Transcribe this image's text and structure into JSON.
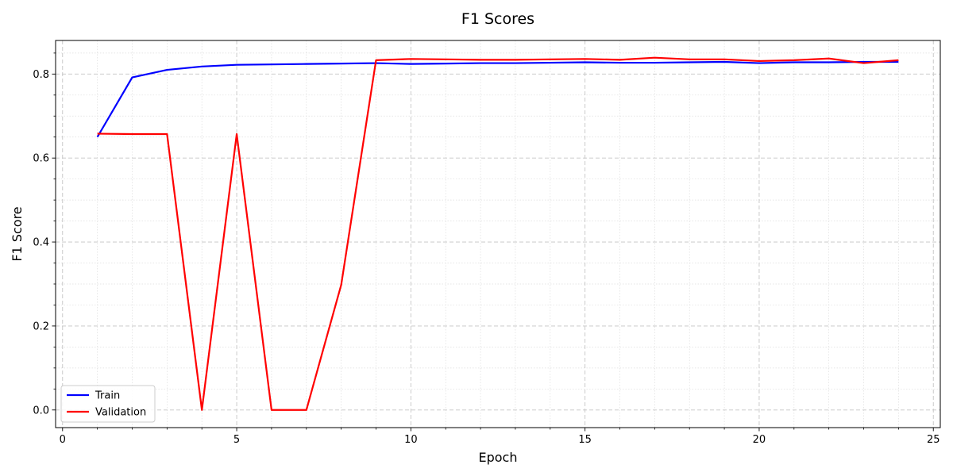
{
  "chart_data": {
    "type": "line",
    "title": "F1 Scores",
    "xlabel": "Epoch",
    "ylabel": "F1 Score",
    "xlim": [
      -0.2,
      25.2
    ],
    "ylim": [
      -0.042,
      0.88
    ],
    "x_ticks": [
      0,
      5,
      10,
      15,
      20,
      25
    ],
    "x_minor_step": 1,
    "y_ticks": [
      0.0,
      0.2,
      0.4,
      0.6,
      0.8
    ],
    "y_tick_labels": [
      "0.0",
      "0.2",
      "0.4",
      "0.6",
      "0.8"
    ],
    "y_minor_step": 0.05,
    "grid": true,
    "legend_position": "lower-left",
    "x": [
      1,
      2,
      3,
      4,
      5,
      6,
      7,
      8,
      9,
      10,
      11,
      12,
      13,
      14,
      15,
      16,
      17,
      18,
      19,
      20,
      21,
      22,
      23,
      24
    ],
    "series": [
      {
        "name": "Train",
        "color": "#0000ff",
        "values": [
          0.65,
          0.792,
          0.81,
          0.818,
          0.822,
          0.823,
          0.824,
          0.825,
          0.826,
          0.824,
          0.825,
          0.826,
          0.826,
          0.827,
          0.828,
          0.827,
          0.827,
          0.828,
          0.829,
          0.826,
          0.828,
          0.828,
          0.829,
          0.829
        ]
      },
      {
        "name": "Validation",
        "color": "#ff0000",
        "values": [
          0.658,
          0.657,
          0.657,
          0.0,
          0.657,
          0.0,
          0.0,
          0.298,
          0.833,
          0.836,
          0.835,
          0.834,
          0.834,
          0.835,
          0.836,
          0.834,
          0.839,
          0.835,
          0.835,
          0.831,
          0.833,
          0.837,
          0.826,
          0.833
        ]
      }
    ]
  }
}
